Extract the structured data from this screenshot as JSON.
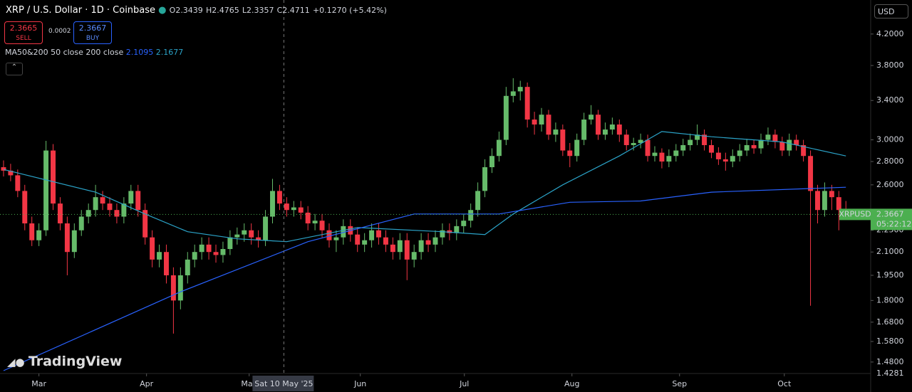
{
  "header": {
    "symbol": "XRP / U.S. Dollar · 1D · Coinbase",
    "open": "O2.3439",
    "high": "H2.4765",
    "low": "L2.3357",
    "close": "C2.4711",
    "change": "+0.1270 (+5.42%)",
    "sell_price": "2.3665",
    "sell_label": "SELL",
    "spread": "0.0002",
    "buy_price": "2.3667",
    "buy_label": "BUY",
    "indicator": "MA50&200 50 close 200 close",
    "indicator_values": [
      2.1095,
      2.1677
    ],
    "currency": "USD",
    "logo": "TradingView"
  },
  "chart_data": {
    "type": "candlestick",
    "log_scale": true,
    "up_color": "#66bb6a",
    "down_color": "#f23645",
    "xlim": [
      -0.5,
      122.5
    ],
    "xticks": [
      {
        "value": 5.0,
        "label": "Mar"
      },
      {
        "value": 20.2,
        "label": "Apr"
      },
      {
        "value": 34.7,
        "label": "May"
      },
      {
        "value": 50.4,
        "label": "Jun"
      },
      {
        "value": 65.1,
        "label": "Jul"
      },
      {
        "value": 80.3,
        "label": "Aug"
      },
      {
        "value": 95.5,
        "label": "Sep"
      },
      {
        "value": 110.3,
        "label": "Oct"
      }
    ],
    "ylim": [
      1.427,
      4.68
    ],
    "yticks": [
      {
        "value": 4.2,
        "label": "4.2000"
      },
      {
        "value": 3.8,
        "label": "3.8000"
      },
      {
        "value": 3.4,
        "label": "3.4000"
      },
      {
        "value": 3.0,
        "label": "3.0000"
      },
      {
        "value": 2.8,
        "label": "2.8000"
      },
      {
        "value": 2.6,
        "label": "2.6000"
      },
      {
        "value": 2.25,
        "label": "2.2500"
      },
      {
        "value": 2.1,
        "label": "2.1000"
      },
      {
        "value": 1.95,
        "label": "1.9500"
      },
      {
        "value": 1.8,
        "label": "1.8000"
      },
      {
        "value": 1.68,
        "label": "1.6800"
      },
      {
        "value": 1.58,
        "label": "1.5800"
      },
      {
        "value": 1.48,
        "label": "1.4800"
      }
    ],
    "bottom_label": 1.4281,
    "crosshair": {
      "x": 39.6,
      "label": "Sat 10 May '25"
    },
    "last_price": {
      "value": 2.3667,
      "symbol": "XRPUSD",
      "countdown": "05:22:12",
      "color": "#4caf50"
    },
    "open": [
      2.75,
      2.72,
      2.68,
      2.55,
      2.3,
      2.18,
      2.25,
      2.9,
      2.45,
      2.3,
      2.1,
      2.25,
      2.35,
      2.4,
      2.5,
      2.45,
      2.4,
      2.35,
      2.45,
      2.55,
      2.4,
      2.2,
      2.05,
      2.1,
      1.95,
      1.8,
      1.95,
      2.05,
      2.1,
      2.15,
      2.1,
      2.08,
      2.12,
      2.2,
      2.22,
      2.25,
      2.2,
      2.18,
      2.35,
      2.55,
      2.45,
      2.4,
      2.42,
      2.38,
      2.3,
      2.32,
      2.25,
      2.18,
      2.2,
      2.28,
      2.22,
      2.15,
      2.18,
      2.25,
      2.2,
      2.15,
      2.1,
      2.18,
      2.05,
      2.1,
      2.18,
      2.15,
      2.2,
      2.25,
      2.23,
      2.28,
      2.32,
      2.4,
      2.55,
      2.75,
      2.85,
      3.0,
      3.45,
      3.5,
      3.55,
      3.2,
      3.15,
      3.25,
      3.05,
      3.1,
      2.9,
      2.85,
      3.0,
      3.2,
      3.25,
      3.05,
      3.1,
      3.15,
      3.05,
      2.95,
      2.97,
      3.0,
      2.85,
      2.88,
      2.8,
      2.85,
      2.9,
      2.95,
      3.0,
      3.05,
      2.95,
      2.88,
      2.82,
      2.8,
      2.85,
      2.9,
      2.95,
      2.92,
      3.0,
      3.05,
      2.98,
      2.9,
      3.0,
      2.95,
      2.85,
      2.55,
      2.4,
      2.55,
      2.5,
      2.4
    ],
    "high": [
      2.81,
      2.78,
      2.73,
      2.6,
      2.35,
      2.3,
      2.99,
      2.96,
      2.5,
      2.35,
      2.3,
      2.4,
      2.45,
      2.6,
      2.55,
      2.5,
      2.45,
      2.5,
      2.6,
      2.6,
      2.45,
      2.25,
      2.15,
      2.15,
      2.0,
      2.0,
      2.1,
      2.15,
      2.2,
      2.2,
      2.15,
      2.17,
      2.25,
      2.27,
      2.3,
      2.3,
      2.25,
      2.4,
      2.65,
      2.6,
      2.5,
      2.47,
      2.47,
      2.43,
      2.37,
      2.37,
      2.3,
      2.25,
      2.33,
      2.33,
      2.27,
      2.23,
      2.3,
      2.3,
      2.25,
      2.2,
      2.23,
      2.23,
      2.15,
      2.23,
      2.23,
      2.25,
      2.3,
      2.3,
      2.33,
      2.37,
      2.45,
      2.62,
      2.82,
      2.92,
      3.08,
      3.55,
      3.65,
      3.62,
      3.6,
      3.28,
      3.32,
      3.3,
      3.17,
      3.15,
      2.97,
      3.06,
      3.27,
      3.35,
      3.3,
      3.17,
      3.22,
      3.2,
      3.1,
      3.02,
      3.06,
      3.05,
      2.94,
      2.92,
      2.91,
      2.96,
      3.01,
      3.06,
      3.15,
      3.1,
      3.0,
      2.93,
      2.88,
      2.91,
      2.96,
      3.01,
      3.0,
      3.06,
      3.12,
      3.1,
      3.03,
      3.06,
      3.05,
      3.0,
      2.9,
      2.6,
      2.62,
      2.6,
      2.55,
      2.47
    ],
    "low": [
      2.67,
      2.63,
      2.5,
      2.25,
      2.14,
      2.14,
      2.21,
      2.4,
      2.25,
      1.95,
      2.06,
      2.21,
      2.3,
      2.35,
      2.4,
      2.35,
      2.3,
      2.3,
      2.4,
      2.35,
      2.15,
      2.0,
      2.0,
      1.9,
      1.62,
      1.75,
      1.9,
      2.0,
      2.05,
      2.05,
      2.03,
      2.03,
      2.08,
      2.15,
      2.17,
      2.15,
      2.13,
      2.14,
      2.3,
      2.4,
      2.35,
      2.35,
      2.33,
      2.25,
      2.25,
      2.2,
      2.13,
      2.1,
      2.15,
      2.17,
      2.1,
      2.1,
      2.13,
      2.15,
      2.1,
      2.05,
      2.05,
      1.92,
      2.0,
      2.05,
      2.1,
      2.1,
      2.15,
      2.18,
      2.18,
      2.23,
      2.27,
      2.35,
      2.5,
      2.7,
      2.8,
      2.95,
      3.38,
      3.4,
      3.12,
      3.05,
      3.08,
      3.0,
      2.98,
      2.85,
      2.75,
      2.8,
      2.95,
      3.15,
      3.0,
      3.0,
      3.05,
      2.98,
      2.9,
      2.9,
      2.92,
      2.8,
      2.8,
      2.74,
      2.75,
      2.8,
      2.85,
      2.9,
      2.95,
      2.9,
      2.83,
      2.77,
      2.72,
      2.75,
      2.8,
      2.85,
      2.87,
      2.87,
      2.95,
      2.92,
      2.85,
      2.85,
      2.9,
      2.8,
      1.77,
      2.3,
      2.35,
      2.4,
      2.25,
      2.34
    ],
    "close": [
      2.72,
      2.68,
      2.55,
      2.3,
      2.18,
      2.25,
      2.9,
      2.45,
      2.3,
      2.1,
      2.25,
      2.35,
      2.4,
      2.5,
      2.45,
      2.4,
      2.35,
      2.45,
      2.55,
      2.4,
      2.2,
      2.05,
      2.1,
      1.95,
      1.8,
      1.95,
      2.05,
      2.1,
      2.15,
      2.1,
      2.08,
      2.12,
      2.2,
      2.22,
      2.25,
      2.2,
      2.18,
      2.35,
      2.55,
      2.45,
      2.4,
      2.42,
      2.38,
      2.3,
      2.32,
      2.25,
      2.18,
      2.2,
      2.28,
      2.22,
      2.15,
      2.18,
      2.25,
      2.2,
      2.15,
      2.1,
      2.18,
      2.05,
      2.1,
      2.18,
      2.15,
      2.2,
      2.25,
      2.23,
      2.28,
      2.32,
      2.4,
      2.55,
      2.75,
      2.85,
      3.0,
      3.45,
      3.5,
      3.55,
      3.2,
      3.15,
      3.25,
      3.05,
      3.1,
      2.9,
      2.85,
      3.0,
      3.2,
      3.25,
      3.05,
      3.1,
      3.15,
      3.05,
      2.95,
      2.97,
      3.0,
      2.85,
      2.88,
      2.8,
      2.85,
      2.9,
      2.95,
      3.0,
      3.05,
      2.95,
      2.88,
      2.82,
      2.8,
      2.85,
      2.9,
      2.95,
      2.92,
      3.0,
      3.05,
      2.98,
      2.9,
      3.0,
      2.95,
      2.85,
      2.55,
      2.4,
      2.55,
      2.5,
      2.4,
      2.37
    ],
    "series": [
      {
        "color": "#2ba3c8",
        "x": [
          0,
          13,
          20,
          26,
          33,
          40,
          50,
          62,
          68,
          72,
          79,
          87,
          93,
          100,
          110,
          119
        ],
        "values": [
          2.73,
          2.54,
          2.37,
          2.24,
          2.19,
          2.17,
          2.27,
          2.24,
          2.22,
          2.37,
          2.6,
          2.85,
          3.08,
          3.03,
          2.98,
          2.85
        ]
      },
      {
        "color": "#2962ff",
        "x": [
          0,
          25,
          43,
          58,
          70,
          80,
          90,
          100,
          119
        ],
        "values": [
          1.44,
          1.85,
          2.17,
          2.37,
          2.37,
          2.46,
          2.47,
          2.54,
          2.58
        ]
      }
    ]
  }
}
